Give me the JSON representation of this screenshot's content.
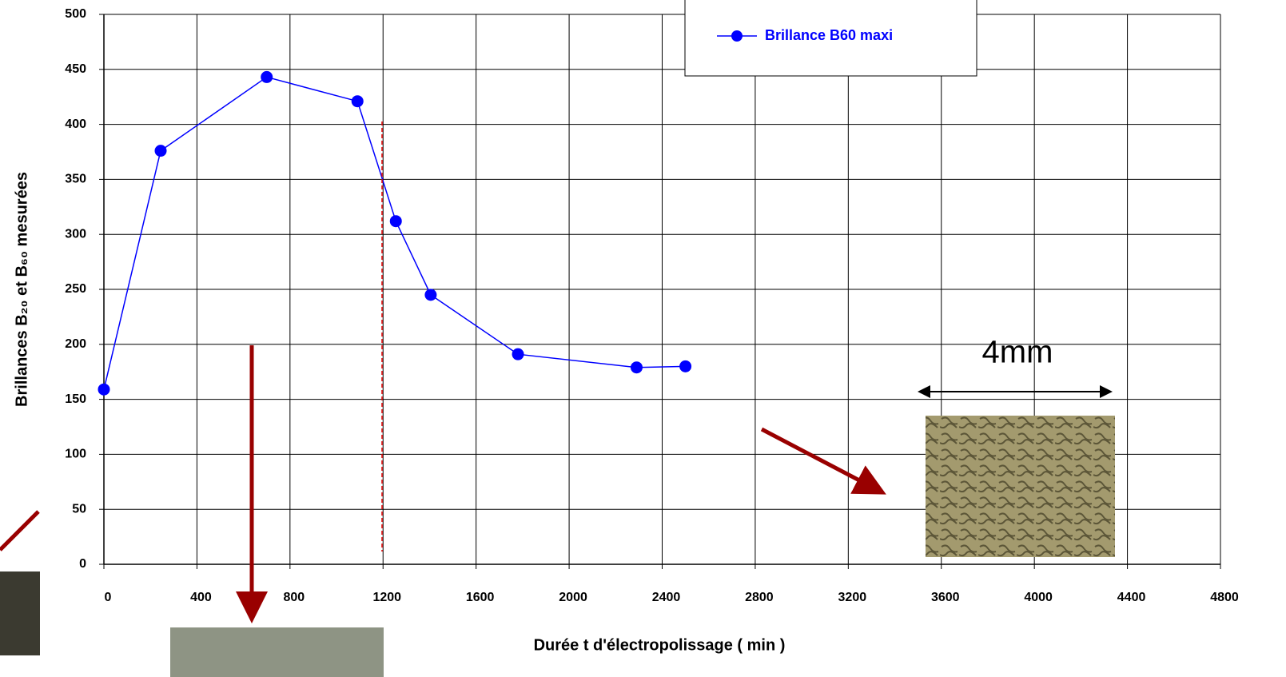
{
  "chart_data": {
    "type": "line",
    "x_label": "Durée  t  d'électropolissage  ( min )",
    "y_label": "Brillances B₂₀ et B₆₀ mesurées",
    "series": [
      {
        "name": "Brillance B60 maxi",
        "color": "#0000ff",
        "x": [
          0,
          244,
          700,
          1090,
          1255,
          1405,
          1780,
          2290,
          2500
        ],
        "values": [
          159,
          376,
          443,
          421,
          312,
          245,
          191,
          179,
          180
        ]
      }
    ],
    "xlim": [
      0,
      4800
    ],
    "xticks": [
      0,
      400,
      800,
      1200,
      1600,
      2000,
      2400,
      2800,
      3200,
      3600,
      4000,
      4400,
      4800
    ],
    "ylim": [
      0,
      500
    ],
    "yticks": [
      0,
      50,
      100,
      150,
      200,
      250,
      300,
      350,
      400,
      450,
      500
    ],
    "grid": true,
    "legend": "top-right",
    "annotations": [
      "4mm"
    ]
  }
}
